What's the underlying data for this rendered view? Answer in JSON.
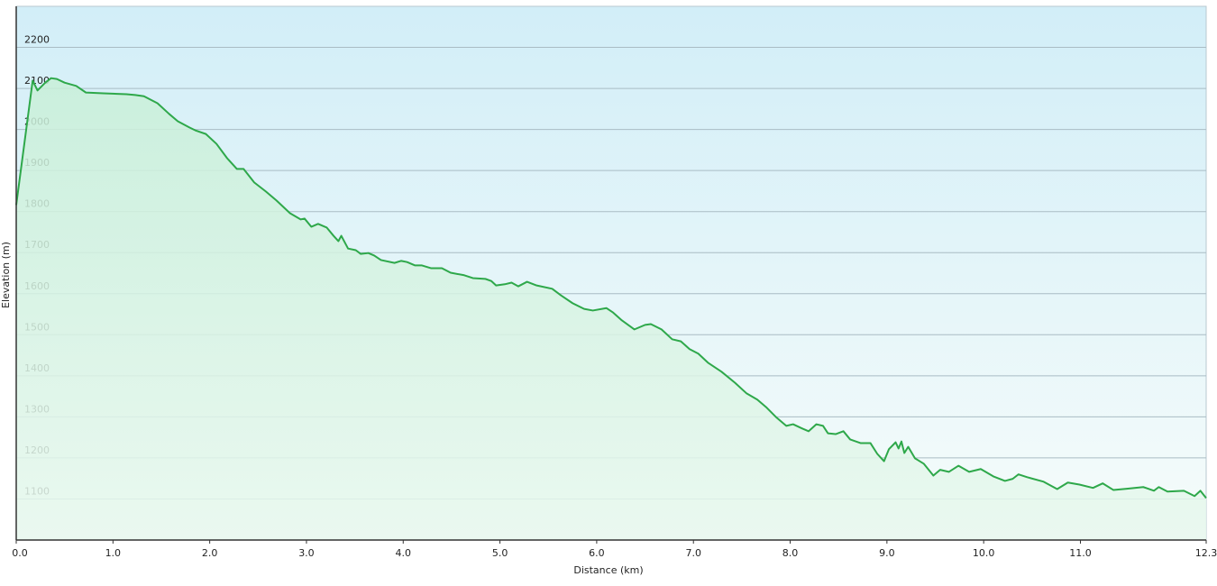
{
  "chart_data": {
    "type": "area",
    "xlabel": "Distance  (km)",
    "ylabel": "Elevation (m)",
    "color": "#2ea84a",
    "x": [
      0,
      0.17,
      0.22,
      0.3,
      0.36,
      0.42,
      0.5,
      0.62,
      0.72,
      0.9,
      1.14,
      1.23,
      1.32,
      1.46,
      1.58,
      1.67,
      1.79,
      1.85,
      1.96,
      2.07,
      2.18,
      2.28,
      2.35,
      2.46,
      2.58,
      2.69,
      2.83,
      2.94,
      2.98,
      3.05,
      3.12,
      3.21,
      3.28,
      3.33,
      3.36,
      3.43,
      3.51,
      3.56,
      3.64,
      3.7,
      3.77,
      3.91,
      3.98,
      4.04,
      4.12,
      4.19,
      4.29,
      4.4,
      4.49,
      4.63,
      4.72,
      4.85,
      4.91,
      4.96,
      5.05,
      5.12,
      5.19,
      5.28,
      5.38,
      5.54,
      5.63,
      5.75,
      5.87,
      5.96,
      6.1,
      6.17,
      6.26,
      6.39,
      6.5,
      6.56,
      6.67,
      6.78,
      6.87,
      6.96,
      7.05,
      7.15,
      7.29,
      7.43,
      7.55,
      7.66,
      7.75,
      7.86,
      7.96,
      8.03,
      8.13,
      8.19,
      8.27,
      8.34,
      8.39,
      8.47,
      8.55,
      8.62,
      8.73,
      8.83,
      8.9,
      8.97,
      9.02,
      9.09,
      9.12,
      9.15,
      9.18,
      9.22,
      9.29,
      9.38,
      9.48,
      9.55,
      9.64,
      9.74,
      9.85,
      9.97,
      10.1,
      10.22,
      10.3,
      10.36,
      10.45,
      10.62,
      10.76,
      10.87,
      10.99,
      11.13,
      11.23,
      11.34,
      11.48,
      11.65,
      11.76,
      11.81,
      11.9,
      12.07,
      12.18,
      12.24,
      12.3
    ],
    "values": [
      1816,
      2119,
      2095,
      2114,
      2125,
      2123,
      2114,
      2106,
      2090,
      2088,
      2086,
      2084,
      2081,
      2064,
      2038,
      2020,
      2005,
      1998,
      1989,
      1965,
      1930,
      1904,
      1904,
      1871,
      1849,
      1827,
      1796,
      1781,
      1783,
      1763,
      1770,
      1761,
      1741,
      1728,
      1741,
      1710,
      1706,
      1697,
      1699,
      1693,
      1682,
      1675,
      1680,
      1677,
      1669,
      1669,
      1662,
      1662,
      1651,
      1645,
      1638,
      1636,
      1631,
      1620,
      1623,
      1627,
      1618,
      1629,
      1620,
      1612,
      1596,
      1577,
      1563,
      1559,
      1565,
      1554,
      1535,
      1513,
      1524,
      1526,
      1513,
      1489,
      1484,
      1465,
      1454,
      1432,
      1410,
      1383,
      1357,
      1342,
      1324,
      1298,
      1278,
      1282,
      1271,
      1265,
      1282,
      1278,
      1260,
      1258,
      1265,
      1245,
      1236,
      1236,
      1210,
      1192,
      1221,
      1238,
      1223,
      1240,
      1212,
      1227,
      1199,
      1186,
      1157,
      1171,
      1166,
      1181,
      1166,
      1173,
      1155,
      1144,
      1149,
      1160,
      1153,
      1142,
      1124,
      1140,
      1135,
      1127,
      1138,
      1122,
      1125,
      1129,
      1120,
      1129,
      1118,
      1120,
      1107,
      1120,
      1102
    ],
    "xlim": [
      0,
      12.3
    ],
    "ylim": [
      1000,
      2300
    ],
    "xticks": [
      {
        "value": 0,
        "label": "0.0"
      },
      {
        "value": 1,
        "label": "1.0"
      },
      {
        "value": 2,
        "label": "2.0"
      },
      {
        "value": 3,
        "label": "3.0"
      },
      {
        "value": 4,
        "label": "4.0"
      },
      {
        "value": 5,
        "label": "5.0"
      },
      {
        "value": 6,
        "label": "6.0"
      },
      {
        "value": 7,
        "label": "7.0"
      },
      {
        "value": 8,
        "label": "8.0"
      },
      {
        "value": 9,
        "label": "9.0"
      },
      {
        "value": 10,
        "label": "10.0"
      },
      {
        "value": 11,
        "label": "11.0"
      },
      {
        "value": 12.3,
        "label": "12.3"
      }
    ],
    "yticks": [
      1100,
      1200,
      1300,
      1400,
      1500,
      1600,
      1700,
      1800,
      1900,
      2000,
      2100,
      2200
    ],
    "grid": true
  }
}
